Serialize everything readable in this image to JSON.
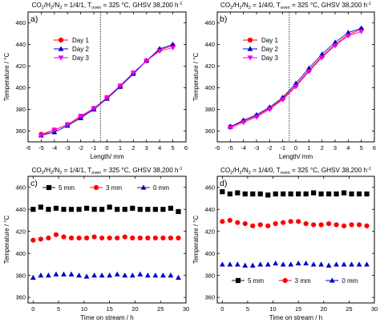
{
  "chart_data": [
    {
      "id": "a",
      "type": "line",
      "panel_label": "a)",
      "title_parts": [
        "CO",
        "2",
        "/H",
        "2",
        "/N",
        "2",
        " = 1/4/1, T",
        "oven",
        " = 325 °C, GHSV 38,200 h",
        "-1"
      ],
      "xlabel": "Length/ mm",
      "ylabel": "Temperature / °C",
      "xlim": [
        -6,
        6
      ],
      "ylim": [
        350,
        470
      ],
      "xticks": [
        -6,
        -5,
        -4,
        -3,
        -2,
        -1,
        0,
        1,
        2,
        3,
        4,
        5,
        6
      ],
      "yticks": [
        360,
        380,
        400,
        420,
        440,
        460
      ],
      "vline": -0.5,
      "legend": "top-left",
      "x": [
        -5,
        -4,
        -3,
        -2,
        -1,
        0,
        1,
        2,
        3,
        4,
        5
      ],
      "series": [
        {
          "name": "Day 1",
          "color": "#ff0000",
          "marker": "circle",
          "values": [
            357,
            361,
            366,
            373,
            381,
            391,
            401,
            413,
            425,
            435,
            439
          ]
        },
        {
          "name": "Day 2",
          "color": "#0000cc",
          "marker": "triangle-up",
          "values": [
            356,
            359,
            365,
            372,
            380,
            390,
            401,
            413,
            425,
            436,
            440
          ]
        },
        {
          "name": "Day 3",
          "color": "#ee00ee",
          "marker": "triangle-down",
          "values": [
            356,
            361,
            366,
            374,
            381,
            391,
            402,
            414,
            425,
            434,
            437
          ]
        }
      ]
    },
    {
      "id": "b",
      "type": "line",
      "panel_label": "b)",
      "title_parts": [
        "CO",
        "2",
        "/H",
        "2",
        "/N",
        "2",
        " = 1/4/0, T",
        "oven",
        " = 325 °C, GHSV 38,200 h",
        "-1"
      ],
      "xlabel": "Length/ mm",
      "ylabel": "Temperature / °C",
      "xlim": [
        -6,
        6
      ],
      "ylim": [
        350,
        470
      ],
      "xticks": [
        -6,
        -5,
        -4,
        -3,
        -2,
        -1,
        0,
        1,
        2,
        3,
        4,
        5,
        6
      ],
      "yticks": [
        360,
        380,
        400,
        420,
        440,
        460
      ],
      "vline": -0.5,
      "legend": "top-left",
      "x": [
        -5,
        -4,
        -3,
        -2,
        -1,
        0,
        1,
        2,
        3,
        4,
        5
      ],
      "series": [
        {
          "name": "Day 1",
          "color": "#ff0000",
          "marker": "circle",
          "values": [
            364,
            369,
            374,
            381,
            390,
            402,
            416,
            429,
            440,
            449,
            454
          ]
        },
        {
          "name": "Day 2",
          "color": "#0000cc",
          "marker": "triangle-up",
          "values": [
            364,
            370,
            375,
            382,
            391,
            404,
            418,
            431,
            442,
            451,
            455
          ]
        },
        {
          "name": "Day 3",
          "color": "#ee00ee",
          "marker": "triangle-down",
          "values": [
            363,
            368,
            373,
            380,
            389,
            401,
            415,
            428,
            439,
            448,
            452
          ]
        }
      ]
    },
    {
      "id": "c",
      "type": "scatter",
      "panel_label": "c)",
      "title_parts": [
        "CO",
        "2",
        "/H",
        "2",
        "/N",
        "2",
        " = 1/4/1, T",
        "oven",
        " = 325 °C, GHSV 38,200 h",
        "-1"
      ],
      "xlabel": "Time on stream / h",
      "ylabel": "Temperature / °C",
      "xlim": [
        -1,
        30
      ],
      "ylim": [
        355,
        470
      ],
      "xticks": [
        0,
        5,
        10,
        15,
        20,
        25,
        30
      ],
      "yticks": [
        360,
        380,
        400,
        420,
        440,
        460
      ],
      "legend": "top",
      "x": [
        0,
        1.5,
        3,
        4.5,
        6,
        7.5,
        9,
        10.5,
        12,
        13.5,
        15,
        16.5,
        18,
        19.5,
        21,
        22.5,
        24,
        25.5,
        27,
        28.5
      ],
      "series": [
        {
          "name": "5 mm",
          "color": "#000000",
          "marker": "square",
          "values": [
            440,
            442,
            440,
            441,
            440,
            440,
            440,
            441,
            440,
            440,
            442,
            440,
            440,
            441,
            440,
            440,
            440,
            440,
            441,
            438
          ]
        },
        {
          "name": "3 mm",
          "color": "#ff0000",
          "marker": "circle",
          "values": [
            412,
            413,
            414,
            417,
            415,
            414,
            414,
            414,
            415,
            414,
            414,
            414,
            415,
            414,
            414,
            414,
            414,
            414,
            414,
            414
          ]
        },
        {
          "name": "0 mm",
          "color": "#0000cc",
          "marker": "triangle-up",
          "values": [
            378,
            380,
            380,
            381,
            381,
            381,
            380,
            379,
            380,
            380,
            380,
            381,
            380,
            380,
            381,
            380,
            380,
            380,
            380,
            378
          ]
        }
      ]
    },
    {
      "id": "d",
      "type": "scatter",
      "panel_label": "d)",
      "title_parts": [
        "CO",
        "2",
        "/H",
        "2",
        "/N",
        "2",
        " = 1/4/0, T",
        "oven",
        " = 325 °C, GHSV 38,200 h",
        "-1"
      ],
      "xlabel": "Time on stream / h",
      "ylabel": "Temperature / °C",
      "xlim": [
        -1,
        30
      ],
      "ylim": [
        355,
        470
      ],
      "xticks": [
        0,
        5,
        10,
        15,
        20,
        25,
        30
      ],
      "yticks": [
        360,
        380,
        400,
        420,
        440,
        460
      ],
      "legend": "bottom",
      "x": [
        0,
        1.5,
        3,
        4.5,
        6,
        7.5,
        9,
        10.5,
        12,
        13.5,
        15,
        16.5,
        18,
        19.5,
        21,
        22.5,
        24,
        25.5,
        27,
        28.5
      ],
      "series": [
        {
          "name": "5 mm",
          "color": "#000000",
          "marker": "square",
          "values": [
            456,
            454,
            455,
            454,
            454,
            454,
            453,
            454,
            454,
            454,
            454,
            454,
            455,
            454,
            454,
            454,
            455,
            454,
            454,
            454
          ]
        },
        {
          "name": "3 mm",
          "color": "#ff0000",
          "marker": "circle",
          "values": [
            429,
            430,
            428,
            427,
            425,
            426,
            425,
            427,
            428,
            429,
            429,
            427,
            426,
            426,
            427,
            426,
            425,
            426,
            426,
            425
          ]
        },
        {
          "name": "0 mm",
          "color": "#0000cc",
          "marker": "triangle-up",
          "values": [
            390,
            390,
            390,
            389,
            389,
            390,
            390,
            391,
            390,
            390,
            391,
            391,
            390,
            390,
            389,
            390,
            390,
            390,
            390,
            390
          ]
        }
      ]
    }
  ]
}
